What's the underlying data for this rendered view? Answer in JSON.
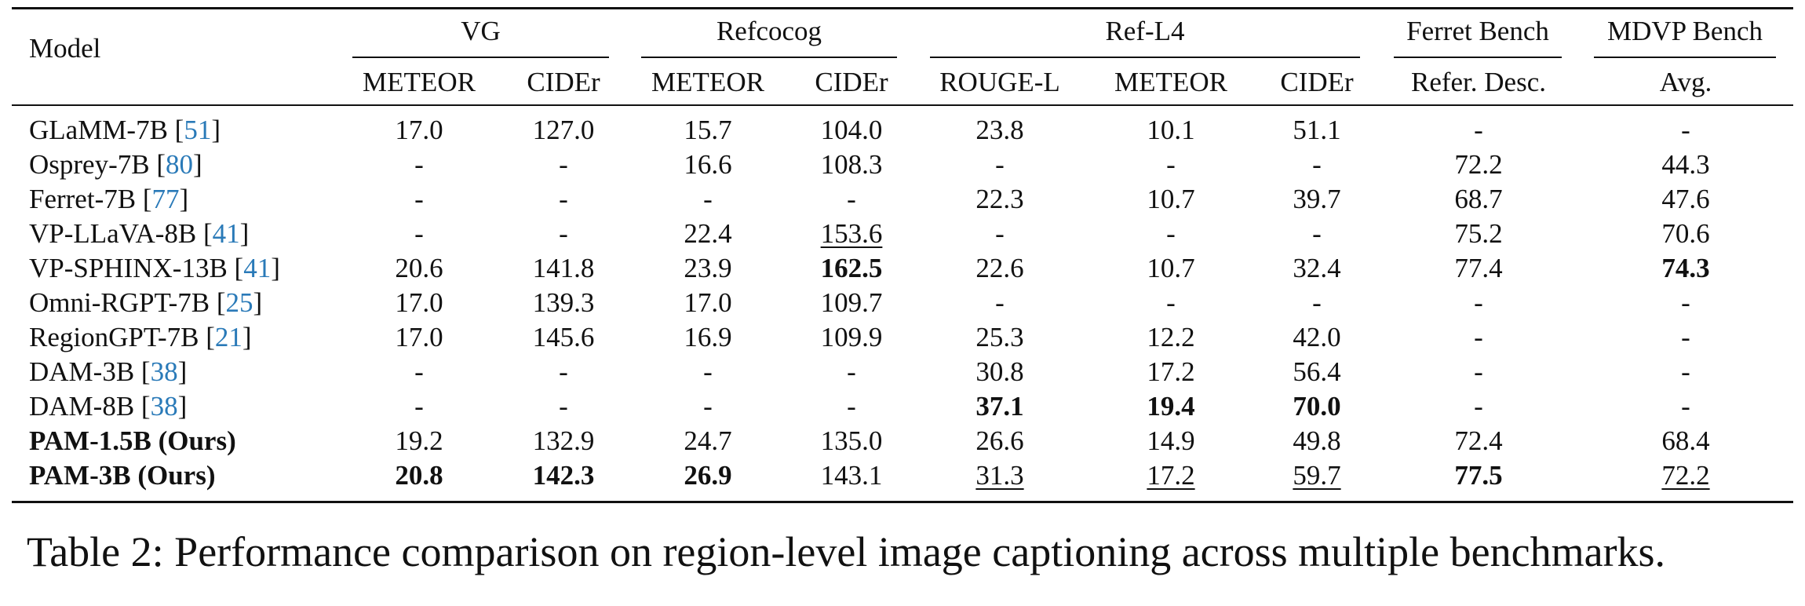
{
  "table": {
    "header": {
      "model": "Model",
      "groups": [
        {
          "label": "VG",
          "columns": [
            "METEOR",
            "CIDEr"
          ]
        },
        {
          "label": "Refcocog",
          "columns": [
            "METEOR",
            "CIDEr"
          ]
        },
        {
          "label": "Ref-L4",
          "columns": [
            "ROUGE-L",
            "METEOR",
            "CIDEr"
          ]
        },
        {
          "label": "Ferret Bench",
          "columns": [
            "Refer. Desc."
          ]
        },
        {
          "label": "MDVP Bench",
          "columns": [
            "Avg."
          ]
        }
      ]
    },
    "rows": [
      {
        "model": [
          "GLaMM-7B [",
          "51",
          "]"
        ],
        "cells": [
          "17.0",
          "127.0",
          "15.7",
          "104.0",
          "23.8",
          "10.1",
          "51.1",
          "-",
          "-"
        ]
      },
      {
        "model": [
          "Osprey-7B [",
          "80",
          "]"
        ],
        "cells": [
          "-",
          "-",
          "16.6",
          "108.3",
          "-",
          "-",
          "-",
          "72.2",
          "44.3"
        ]
      },
      {
        "model": [
          "Ferret-7B [",
          "77",
          "]"
        ],
        "cells": [
          "-",
          "-",
          "-",
          "-",
          "22.3",
          "10.7",
          "39.7",
          "68.7",
          "47.6"
        ]
      },
      {
        "model": [
          "VP-LLaVA-8B [",
          "41",
          "]"
        ],
        "cells": [
          "-",
          "-",
          "22.4",
          {
            "text": "153.6",
            "underline": true
          },
          "-",
          "-",
          "-",
          "75.2",
          "70.6"
        ]
      },
      {
        "model": [
          "VP-SPHINX-13B [",
          "41",
          "]"
        ],
        "cells": [
          "20.6",
          "141.8",
          "23.9",
          {
            "text": "162.5",
            "bold": true
          },
          "22.6",
          "10.7",
          "32.4",
          "77.4",
          {
            "text": "74.3",
            "bold": true
          }
        ]
      },
      {
        "model": [
          "Omni-RGPT-7B [",
          "25",
          "]"
        ],
        "cells": [
          "17.0",
          "139.3",
          "17.0",
          "109.7",
          "-",
          "-",
          "-",
          "-",
          "-"
        ]
      },
      {
        "model": [
          "RegionGPT-7B [",
          "21",
          "]"
        ],
        "cells": [
          "17.0",
          "145.6",
          "16.9",
          "109.9",
          "25.3",
          "12.2",
          "42.0",
          "-",
          "-"
        ]
      },
      {
        "model": [
          "DAM-3B [",
          "38",
          "]"
        ],
        "cells": [
          "-",
          "-",
          "-",
          "-",
          "30.8",
          "17.2",
          "56.4",
          "-",
          "-"
        ]
      },
      {
        "model": [
          "DAM-8B [",
          "38",
          "]"
        ],
        "cells": [
          "-",
          "-",
          "-",
          "-",
          {
            "text": "37.1",
            "bold": true
          },
          {
            "text": "19.4",
            "bold": true
          },
          {
            "text": "70.0",
            "bold": true
          },
          "-",
          "-"
        ]
      },
      {
        "model": [
          "PAM-1.5B (Ours)"
        ],
        "bold": true,
        "cells": [
          "19.2",
          "132.9",
          "24.7",
          "135.0",
          "26.6",
          "14.9",
          "49.8",
          "72.4",
          "68.4"
        ]
      },
      {
        "model": [
          "PAM-3B (Ours)"
        ],
        "bold": true,
        "cells": [
          {
            "text": "20.8",
            "bold": true
          },
          {
            "text": "142.3",
            "bold": true
          },
          {
            "text": "26.9",
            "bold": true
          },
          "143.1",
          {
            "text": "31.3",
            "underline": true
          },
          {
            "text": "17.2",
            "underline": true
          },
          {
            "text": "59.7",
            "underline": true
          },
          {
            "text": "77.5",
            "bold": true
          },
          {
            "text": "72.2",
            "underline": true
          }
        ]
      }
    ],
    "caption": "Table 2: Performance comparison on region-level image captioning across multiple benchmarks."
  }
}
